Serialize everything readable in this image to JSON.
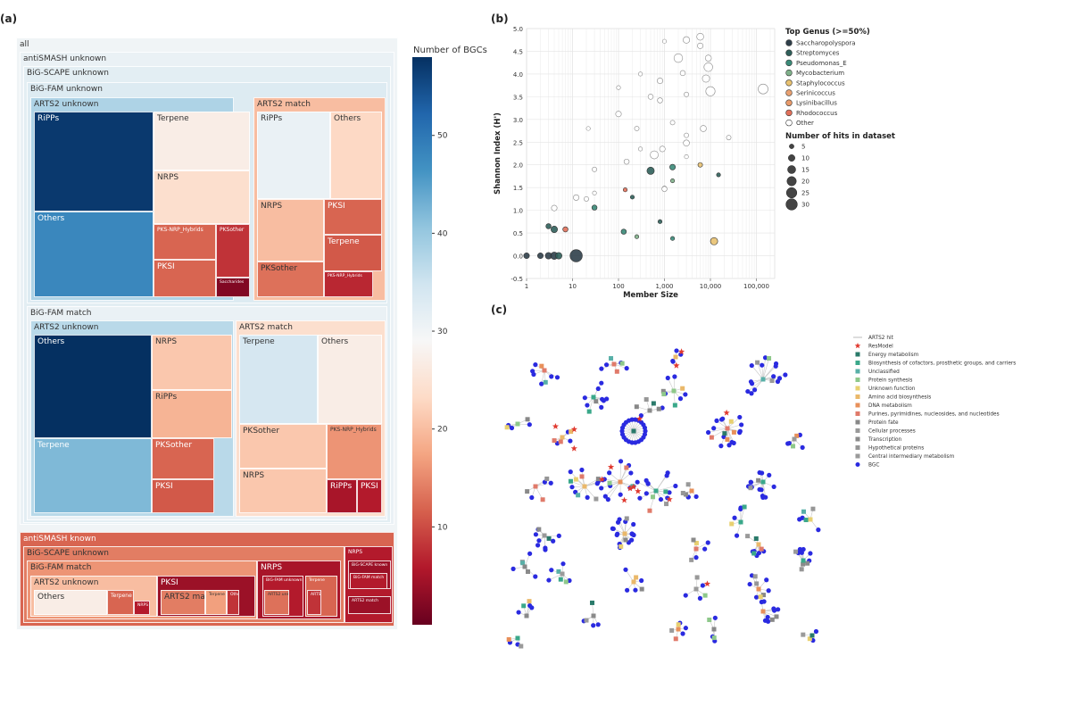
{
  "panels": {
    "a": "(a)",
    "b": "(b)",
    "c": "(c)"
  },
  "treemap": {
    "colorbar": {
      "title": "Number of BGCs",
      "ticks": [
        10,
        20,
        30,
        40,
        50
      ],
      "range": [
        0,
        58
      ]
    },
    "nodes": [
      {
        "label": "all",
        "v": 30
      },
      {
        "label": "antiSMASH unknown",
        "v": 31
      },
      {
        "label": "BiG-SCAPE unknown",
        "v": 32
      },
      {
        "label": "BiG-FAM unknown",
        "v": 33
      },
      {
        "label": "ARTS2 unknown",
        "v": 38
      },
      {
        "label": "RiPPs",
        "v": 57
      },
      {
        "label": "Others",
        "v": 48
      },
      {
        "label": "Terpene",
        "v": 27
      },
      {
        "label": "NRPS",
        "v": 24
      },
      {
        "label": "PKS-NRP_Hybrids",
        "v": 12
      },
      {
        "label": "PKSother",
        "v": 8
      },
      {
        "label": "PKSI",
        "v": 12
      },
      {
        "label": "Saccharides",
        "v": 2
      },
      {
        "label": "ARTS2 match",
        "v": 20
      },
      {
        "label": "RiPPs",
        "v": 31
      },
      {
        "label": "Others",
        "v": 23
      },
      {
        "label": "NRPS",
        "v": 20
      },
      {
        "label": "PKSI",
        "v": 12
      },
      {
        "label": "Terpene",
        "v": 11
      },
      {
        "label": "PKSother",
        "v": 13
      },
      {
        "label": "PKS-NRP_Hybrids",
        "v": 7
      },
      {
        "label": "BiG-FAM match",
        "v": 31
      },
      {
        "label": "ARTS2 unknown",
        "v": 37
      },
      {
        "label": "Others",
        "v": 58
      },
      {
        "label": "NRPS",
        "v": 21
      },
      {
        "label": "RiPPs",
        "v": 19
      },
      {
        "label": "Terpene",
        "v": 42
      },
      {
        "label": "PKSother",
        "v": 12
      },
      {
        "label": "PKSI",
        "v": 11
      },
      {
        "label": "ARTS2 match",
        "v": 24
      },
      {
        "label": "Terpene",
        "v": 34
      },
      {
        "label": "Others",
        "v": 27
      },
      {
        "label": "PKSother",
        "v": 21
      },
      {
        "label": "PKS-NRP_Hybrids",
        "v": 16
      },
      {
        "label": "NRPS",
        "v": 21
      },
      {
        "label": "RiPPs",
        "v": 5
      },
      {
        "label": "PKSI",
        "v": 6
      },
      {
        "label": "antiSMASH known",
        "v": 12
      },
      {
        "label": "BiG-SCAPE unknown",
        "v": 14
      },
      {
        "label": "BiG-FAM match",
        "v": 16
      },
      {
        "label": "ARTS2 unknown",
        "v": 20
      },
      {
        "label": "Others",
        "v": 27
      },
      {
        "label": "Terpene",
        "v": 12
      },
      {
        "label": "NRPS",
        "v": 6
      },
      {
        "label": "PKSI",
        "v": 4
      },
      {
        "label": "ARTS2 match",
        "v": 14
      },
      {
        "label": "Terpene",
        "v": 17
      },
      {
        "label": "Others",
        "v": 8
      },
      {
        "label": "NRPS",
        "v": 5
      },
      {
        "label": "BiG-FAM unknown",
        "v": 6
      },
      {
        "label": "ARTS2 unknown",
        "v": 13
      },
      {
        "label": "Terpene",
        "v": 12
      },
      {
        "label": "ARTS2 match",
        "v": 8
      },
      {
        "label": "NRPS",
        "v": 6
      },
      {
        "label": "BiG-SCAPE known",
        "v": 4
      },
      {
        "label": "BiG-FAM match",
        "v": 6
      },
      {
        "label": "ARTS2 match",
        "v": 4
      },
      {
        "label": "ARTS2 unknown",
        "v": 4
      }
    ]
  },
  "scatter": {
    "xlabel": "Member Size",
    "ylabel": "Shannon Index (H')",
    "xticks": [
      {
        "v": 1,
        "t": "1"
      },
      {
        "v": 10,
        "t": "10"
      },
      {
        "v": 100,
        "t": "100"
      },
      {
        "v": 1000,
        "t": "1,000"
      },
      {
        "v": 10000,
        "t": "10,000"
      },
      {
        "v": 100000,
        "t": "100,000"
      }
    ],
    "yticks": [
      -0.5,
      0.0,
      0.5,
      1.0,
      1.5,
      2.0,
      2.5,
      3.0,
      3.5,
      4.0,
      4.5,
      5.0
    ],
    "legend_title_genus": "Top Genus (>=50%)",
    "legend_title_size": "Number of hits in dataset",
    "genus": [
      {
        "name": "Saccharopolyspora",
        "color": "#2f3f4a"
      },
      {
        "name": "Streptomyces",
        "color": "#2f5f5a"
      },
      {
        "name": "Pseudomonas_E",
        "color": "#3a8a78"
      },
      {
        "name": "Mycobacterium",
        "color": "#7fb08a"
      },
      {
        "name": "Staphylococcus",
        "color": "#e8c170"
      },
      {
        "name": "Serinicoccus",
        "color": "#e8a070"
      },
      {
        "name": "Lysinibacillus",
        "color": "#e89a6a"
      },
      {
        "name": "Rhodococcus",
        "color": "#e0705a"
      },
      {
        "name": "Other",
        "color": "#ffffff"
      }
    ],
    "sizes": [
      5,
      10,
      15,
      20,
      25,
      30
    ],
    "points": [
      {
        "x": 1,
        "y": 0,
        "n": 6,
        "g": 0
      },
      {
        "x": 2,
        "y": 0,
        "n": 6,
        "g": 0
      },
      {
        "x": 3,
        "y": 0,
        "n": 8,
        "g": 0
      },
      {
        "x": 4,
        "y": 0,
        "n": 10,
        "g": 0
      },
      {
        "x": 5,
        "y": 0,
        "n": 8,
        "g": 1
      },
      {
        "x": 12,
        "y": 0,
        "n": 28,
        "g": 0
      },
      {
        "x": 3,
        "y": 0.65,
        "n": 5,
        "g": 1
      },
      {
        "x": 4,
        "y": 0.58,
        "n": 8,
        "g": 1
      },
      {
        "x": 7,
        "y": 0.58,
        "n": 5,
        "g": 7
      },
      {
        "x": 30,
        "y": 1.06,
        "n": 5,
        "g": 2
      },
      {
        "x": 130,
        "y": 0.53,
        "n": 5,
        "g": 2
      },
      {
        "x": 500,
        "y": 1.87,
        "n": 10,
        "g": 1
      },
      {
        "x": 1500,
        "y": 1.95,
        "n": 6,
        "g": 2
      },
      {
        "x": 1000,
        "y": 1.48,
        "n": 4,
        "g": 3
      },
      {
        "x": 1500,
        "y": 1.65,
        "n": 3,
        "g": 3
      },
      {
        "x": 1500,
        "y": 0.38,
        "n": 3,
        "g": 2
      },
      {
        "x": 800,
        "y": 0.75,
        "n": 3,
        "g": 1
      },
      {
        "x": 6000,
        "y": 2.0,
        "n": 4,
        "g": 4
      },
      {
        "x": 12000,
        "y": 0.32,
        "n": 10,
        "g": 4
      },
      {
        "x": 140,
        "y": 1.45,
        "n": 3,
        "g": 7
      },
      {
        "x": 200,
        "y": 1.29,
        "n": 3,
        "g": 1
      },
      {
        "x": 250,
        "y": 0.42,
        "n": 3,
        "g": 3
      },
      {
        "x": 15000,
        "y": 1.78,
        "n": 3,
        "g": 1
      },
      {
        "x": 4,
        "y": 1.05,
        "n": 6,
        "g": 8
      },
      {
        "x": 12,
        "y": 1.28,
        "n": 6,
        "g": 8
      },
      {
        "x": 20,
        "y": 1.25,
        "n": 4,
        "g": 8
      },
      {
        "x": 30,
        "y": 1.38,
        "n": 3,
        "g": 8
      },
      {
        "x": 30,
        "y": 1.9,
        "n": 4,
        "g": 8
      },
      {
        "x": 22,
        "y": 2.8,
        "n": 3,
        "g": 8
      },
      {
        "x": 100,
        "y": 3.12,
        "n": 6,
        "g": 8
      },
      {
        "x": 100,
        "y": 3.7,
        "n": 3,
        "g": 8
      },
      {
        "x": 150,
        "y": 2.07,
        "n": 5,
        "g": 8
      },
      {
        "x": 250,
        "y": 2.8,
        "n": 4,
        "g": 8
      },
      {
        "x": 300,
        "y": 4.0,
        "n": 3,
        "g": 8
      },
      {
        "x": 500,
        "y": 3.5,
        "n": 5,
        "g": 8
      },
      {
        "x": 800,
        "y": 3.85,
        "n": 6,
        "g": 8
      },
      {
        "x": 800,
        "y": 3.42,
        "n": 5,
        "g": 8
      },
      {
        "x": 600,
        "y": 2.22,
        "n": 12,
        "g": 8
      },
      {
        "x": 900,
        "y": 2.35,
        "n": 6,
        "g": 8
      },
      {
        "x": 1000,
        "y": 4.72,
        "n": 3,
        "g": 8
      },
      {
        "x": 1500,
        "y": 2.93,
        "n": 4,
        "g": 8
      },
      {
        "x": 2000,
        "y": 4.35,
        "n": 14,
        "g": 8
      },
      {
        "x": 2500,
        "y": 4.02,
        "n": 5,
        "g": 8
      },
      {
        "x": 3000,
        "y": 4.75,
        "n": 8,
        "g": 8
      },
      {
        "x": 3000,
        "y": 3.55,
        "n": 4,
        "g": 8
      },
      {
        "x": 3000,
        "y": 2.48,
        "n": 7,
        "g": 8
      },
      {
        "x": 3000,
        "y": 2.65,
        "n": 4,
        "g": 8
      },
      {
        "x": 6000,
        "y": 4.82,
        "n": 9,
        "g": 8
      },
      {
        "x": 7000,
        "y": 2.8,
        "n": 7,
        "g": 8
      },
      {
        "x": 8000,
        "y": 3.9,
        "n": 10,
        "g": 8
      },
      {
        "x": 9000,
        "y": 4.15,
        "n": 14,
        "g": 8
      },
      {
        "x": 10000,
        "y": 3.62,
        "n": 16,
        "g": 8
      },
      {
        "x": 9000,
        "y": 4.35,
        "n": 7,
        "g": 8
      },
      {
        "x": 6000,
        "y": 4.62,
        "n": 6,
        "g": 8
      },
      {
        "x": 25000,
        "y": 2.6,
        "n": 4,
        "g": 8
      },
      {
        "x": 140000,
        "y": 3.67,
        "n": 18,
        "g": 8
      },
      {
        "x": 1000,
        "y": 1.47,
        "n": 5,
        "g": 8
      },
      {
        "x": 300,
        "y": 2.35,
        "n": 3,
        "g": 8
      },
      {
        "x": 3000,
        "y": 2.18,
        "n": 3,
        "g": 8
      }
    ]
  },
  "network": {
    "legend": [
      {
        "label": "ARTS2 hit",
        "kind": "line",
        "color": "#bbbbbb"
      },
      {
        "label": "ResModel",
        "kind": "star",
        "color": "#e03a30"
      },
      {
        "label": "Energy metabolism",
        "kind": "square",
        "color": "#2a7a6a"
      },
      {
        "label": "Biosynthesis of cofactors, prosthetic groups, and carriers",
        "kind": "square",
        "color": "#3aa88a"
      },
      {
        "label": "Unclassified",
        "kind": "square",
        "color": "#58b0a8"
      },
      {
        "label": "Protein synthesis",
        "kind": "square",
        "color": "#8ec88a"
      },
      {
        "label": "Unknown function",
        "kind": "square",
        "color": "#e8d070"
      },
      {
        "label": "Amino acid biosynthesis",
        "kind": "square",
        "color": "#eab86a"
      },
      {
        "label": "DNA metabolism",
        "kind": "square",
        "color": "#e8905a"
      },
      {
        "label": "Purines, pyrimidines, nucleosides, and nucleotides",
        "kind": "square",
        "color": "#e07a6a"
      },
      {
        "label": "Protein fate",
        "kind": "square",
        "color": "#888888"
      },
      {
        "label": "Cellular processes",
        "kind": "square",
        "color": "#999999"
      },
      {
        "label": "Transcription",
        "kind": "square",
        "color": "#8a8a8a"
      },
      {
        "label": "Hypothetical proteins",
        "kind": "square",
        "color": "#969696"
      },
      {
        "label": "Central intermediary metabolism",
        "kind": "square",
        "color": "#9a9a9a"
      },
      {
        "label": "BGC",
        "kind": "circle",
        "color": "#2a2ae0"
      }
    ]
  }
}
